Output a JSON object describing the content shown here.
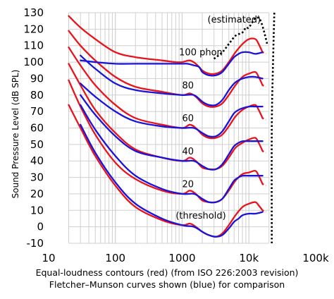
{
  "chart_data": {
    "type": "line",
    "title": "",
    "xlabel": "Equal-loudness contours (red) (from ISO 226:2003 revision)",
    "xlabel2": "Fletcher–Munson curves shown (blue) for comparison",
    "ylabel": "Sound Pressure Level (dB SPL)",
    "xscale": "log",
    "xlim": [
      10,
      100000
    ],
    "ylim": [
      -10,
      130
    ],
    "x_tick_labels": [
      "10",
      "100",
      "1000",
      "10k",
      "100k"
    ],
    "y_ticks": [
      -10,
      0,
      10,
      20,
      30,
      40,
      50,
      60,
      70,
      80,
      90,
      100,
      110,
      120,
      130
    ],
    "grid": true,
    "annotations": [
      {
        "text": "(estimated)",
        "x": 2400,
        "y": 124
      },
      {
        "text": "100 phon",
        "x": 900,
        "y": 104
      },
      {
        "text": "80",
        "x": 1000,
        "y": 84
      },
      {
        "text": "60",
        "x": 1000,
        "y": 64
      },
      {
        "text": "40",
        "x": 1000,
        "y": 44
      },
      {
        "text": "20",
        "x": 1000,
        "y": 24
      },
      {
        "text": "(threshold)",
        "x": 800,
        "y": 5
      }
    ],
    "series": [
      {
        "group": "red",
        "phon": 100,
        "color": "#e8131b",
        "dashed_tail": true,
        "points": [
          [
            20,
            128
          ],
          [
            30,
            121
          ],
          [
            50,
            114
          ],
          [
            100,
            106
          ],
          [
            200,
            103
          ],
          [
            500,
            101
          ],
          [
            800,
            100
          ],
          [
            1000,
            100
          ],
          [
            1300,
            101
          ],
          [
            1600,
            99
          ],
          [
            2000,
            95
          ],
          [
            2500,
            93
          ],
          [
            3200,
            93
          ],
          [
            4000,
            95
          ],
          [
            5000,
            100
          ],
          [
            6300,
            106
          ],
          [
            8000,
            111
          ],
          [
            10000,
            114
          ],
          [
            12500,
            114
          ],
          [
            14000,
            111
          ],
          [
            16000,
            106
          ],
          [
            18000,
            105
          ]
        ]
      },
      {
        "group": "red",
        "phon": 80,
        "color": "#e8131b",
        "dashed_tail": true,
        "points": [
          [
            20,
            119
          ],
          [
            30,
            110
          ],
          [
            50,
            101
          ],
          [
            100,
            91
          ],
          [
            200,
            85
          ],
          [
            500,
            82
          ],
          [
            1000,
            80
          ],
          [
            1300,
            81
          ],
          [
            1600,
            79
          ],
          [
            2000,
            75
          ],
          [
            2500,
            73
          ],
          [
            3200,
            73
          ],
          [
            4000,
            75
          ],
          [
            5000,
            80
          ],
          [
            6300,
            86
          ],
          [
            8000,
            91
          ],
          [
            10000,
            93
          ],
          [
            12500,
            94
          ],
          [
            14000,
            91
          ],
          [
            16000,
            86
          ],
          [
            18000,
            85
          ]
        ]
      },
      {
        "group": "red",
        "phon": 60,
        "color": "#e8131b",
        "dashed_tail": true,
        "points": [
          [
            20,
            109
          ],
          [
            30,
            98
          ],
          [
            50,
            86
          ],
          [
            100,
            74
          ],
          [
            200,
            66
          ],
          [
            500,
            62
          ],
          [
            1000,
            60
          ],
          [
            1300,
            62
          ],
          [
            1600,
            60
          ],
          [
            2000,
            56
          ],
          [
            2500,
            54
          ],
          [
            3200,
            54
          ],
          [
            4000,
            56
          ],
          [
            5000,
            61
          ],
          [
            6300,
            67
          ],
          [
            8000,
            71
          ],
          [
            10000,
            73
          ],
          [
            12500,
            74
          ],
          [
            14000,
            71
          ],
          [
            16000,
            66
          ],
          [
            18000,
            65
          ]
        ]
      },
      {
        "group": "red",
        "phon": 40,
        "color": "#e8131b",
        "dashed_tail": true,
        "points": [
          [
            20,
            99
          ],
          [
            30,
            86
          ],
          [
            50,
            71
          ],
          [
            100,
            57
          ],
          [
            200,
            47
          ],
          [
            500,
            42
          ],
          [
            1000,
            40
          ],
          [
            1300,
            42
          ],
          [
            1600,
            40
          ],
          [
            2000,
            36
          ],
          [
            2500,
            35
          ],
          [
            3200,
            35
          ],
          [
            4000,
            37
          ],
          [
            5000,
            42
          ],
          [
            6300,
            48
          ],
          [
            8000,
            51
          ],
          [
            10000,
            53
          ],
          [
            12500,
            54
          ],
          [
            14000,
            51
          ],
          [
            16000,
            46
          ],
          [
            18000,
            45
          ]
        ]
      },
      {
        "group": "red",
        "phon": 20,
        "color": "#e8131b",
        "dashed_tail": true,
        "points": [
          [
            20,
            89
          ],
          [
            30,
            73
          ],
          [
            50,
            56
          ],
          [
            100,
            39
          ],
          [
            200,
            29
          ],
          [
            500,
            22
          ],
          [
            1000,
            20
          ],
          [
            1300,
            22
          ],
          [
            1600,
            20
          ],
          [
            2000,
            16
          ],
          [
            2500,
            15
          ],
          [
            3200,
            15
          ],
          [
            4000,
            17
          ],
          [
            5000,
            22
          ],
          [
            6300,
            28
          ],
          [
            8000,
            32
          ],
          [
            10000,
            33
          ],
          [
            12500,
            34
          ],
          [
            14000,
            31
          ],
          [
            16000,
            26
          ],
          [
            18000,
            25
          ]
        ]
      },
      {
        "group": "red",
        "phon": 0,
        "color": "#e8131b",
        "dashed_tail": true,
        "points": [
          [
            20,
            74
          ],
          [
            30,
            60
          ],
          [
            50,
            43
          ],
          [
            100,
            25
          ],
          [
            200,
            12
          ],
          [
            500,
            4
          ],
          [
            1000,
            1
          ],
          [
            1300,
            2
          ],
          [
            1600,
            0
          ],
          [
            2000,
            -3
          ],
          [
            2500,
            -5
          ],
          [
            3200,
            -6
          ],
          [
            4000,
            -4
          ],
          [
            5000,
            1
          ],
          [
            6300,
            7
          ],
          [
            8000,
            12
          ],
          [
            10000,
            14
          ],
          [
            12500,
            15
          ],
          [
            14000,
            13
          ],
          [
            16000,
            10
          ],
          [
            18000,
            9
          ]
        ]
      },
      {
        "group": "blue",
        "phon": 100,
        "color": "#1a13d8",
        "points": [
          [
            30,
            101
          ],
          [
            50,
            100
          ],
          [
            100,
            99
          ],
          [
            200,
            99
          ],
          [
            500,
            99
          ],
          [
            1000,
            99
          ],
          [
            1200,
            99
          ],
          [
            1500,
            98
          ],
          [
            1800,
            97
          ],
          [
            2000,
            94
          ],
          [
            2500,
            92
          ],
          [
            3200,
            92
          ],
          [
            4000,
            94
          ],
          [
            5000,
            99
          ],
          [
            6000,
            103
          ],
          [
            7000,
            105
          ],
          [
            8000,
            106
          ],
          [
            10000,
            106
          ],
          [
            12500,
            105
          ],
          [
            16000,
            106
          ]
        ]
      },
      {
        "group": "blue",
        "phon": 80,
        "color": "#1a13d8",
        "points": [
          [
            30,
            104
          ],
          [
            50,
            96
          ],
          [
            100,
            87
          ],
          [
            200,
            83
          ],
          [
            500,
            81
          ],
          [
            1000,
            80
          ],
          [
            1500,
            80
          ],
          [
            2000,
            76
          ],
          [
            2500,
            74
          ],
          [
            3200,
            74
          ],
          [
            4000,
            77
          ],
          [
            5000,
            83
          ],
          [
            6000,
            87
          ],
          [
            7000,
            89
          ],
          [
            8000,
            90
          ],
          [
            10000,
            91
          ],
          [
            12500,
            91
          ],
          [
            16000,
            90
          ]
        ]
      },
      {
        "group": "blue",
        "phon": 60,
        "color": "#1a13d8",
        "points": [
          [
            30,
            87
          ],
          [
            50,
            79
          ],
          [
            100,
            70
          ],
          [
            200,
            64
          ],
          [
            500,
            61
          ],
          [
            1000,
            60
          ],
          [
            1500,
            60
          ],
          [
            2000,
            57
          ],
          [
            2500,
            55
          ],
          [
            3200,
            55
          ],
          [
            4000,
            58
          ],
          [
            5000,
            64
          ],
          [
            6000,
            69
          ],
          [
            7000,
            71
          ],
          [
            8000,
            72
          ],
          [
            10000,
            73
          ],
          [
            12500,
            73
          ],
          [
            16000,
            73
          ]
        ]
      },
      {
        "group": "blue",
        "phon": 40,
        "color": "#1a13d8",
        "points": [
          [
            30,
            80
          ],
          [
            50,
            68
          ],
          [
            100,
            55
          ],
          [
            200,
            46
          ],
          [
            500,
            42
          ],
          [
            1000,
            40
          ],
          [
            1500,
            40
          ],
          [
            2000,
            37
          ],
          [
            2500,
            35
          ],
          [
            3200,
            35
          ],
          [
            4000,
            38
          ],
          [
            5000,
            44
          ],
          [
            6000,
            49
          ],
          [
            7000,
            51
          ],
          [
            8000,
            52
          ],
          [
            10000,
            52
          ],
          [
            12500,
            52
          ],
          [
            16000,
            52
          ]
        ]
      },
      {
        "group": "blue",
        "phon": 20,
        "color": "#1a13d8",
        "points": [
          [
            30,
            74
          ],
          [
            50,
            59
          ],
          [
            100,
            43
          ],
          [
            200,
            31
          ],
          [
            500,
            23
          ],
          [
            1000,
            20
          ],
          [
            1500,
            20
          ],
          [
            2000,
            17
          ],
          [
            2500,
            15
          ],
          [
            3200,
            15
          ],
          [
            4000,
            17
          ],
          [
            5000,
            23
          ],
          [
            6000,
            28
          ],
          [
            7000,
            30
          ],
          [
            8000,
            31
          ],
          [
            10000,
            31
          ],
          [
            12500,
            31
          ],
          [
            16000,
            31
          ]
        ]
      },
      {
        "group": "blue",
        "phon": 0,
        "color": "#1a13d8",
        "points": [
          [
            30,
            62
          ],
          [
            50,
            45
          ],
          [
            100,
            27
          ],
          [
            200,
            14
          ],
          [
            500,
            5
          ],
          [
            1000,
            1
          ],
          [
            1500,
            0
          ],
          [
            2000,
            -3
          ],
          [
            2500,
            -5
          ],
          [
            3200,
            -6
          ],
          [
            4000,
            -5
          ],
          [
            5000,
            -1
          ],
          [
            6000,
            3
          ],
          [
            7000,
            5
          ],
          [
            8000,
            7
          ],
          [
            10000,
            8
          ],
          [
            12500,
            8
          ],
          [
            16000,
            9
          ]
        ]
      }
    ],
    "estimated": {
      "style": "dotted",
      "color": "#000000",
      "curve_100": [
        [
          3000,
          102
        ],
        [
          4000,
          106
        ],
        [
          5000,
          111
        ],
        [
          6300,
          116
        ],
        [
          8000,
          118
        ],
        [
          9000,
          121
        ],
        [
          10000,
          121
        ],
        [
          12000,
          126
        ],
        [
          13500,
          127
        ],
        [
          15000,
          125
        ],
        [
          17000,
          118
        ],
        [
          19000,
          110
        ]
      ],
      "vertical_line": [
        [
          22000,
          -10
        ],
        [
          22000,
          60
        ],
        [
          23000,
          100
        ],
        [
          24000,
          130
        ]
      ]
    }
  }
}
